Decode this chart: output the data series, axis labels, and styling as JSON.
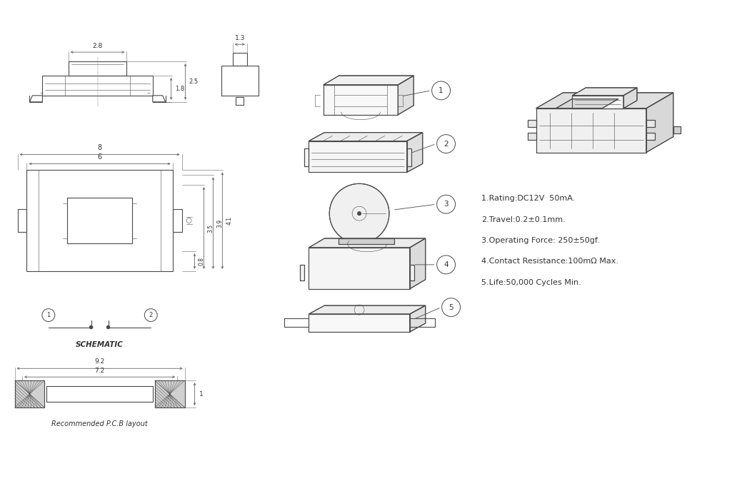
{
  "bg_color": "#ffffff",
  "line_color": "#4a4a4a",
  "dim_color": "#666666",
  "text_color": "#333333",
  "specs": [
    "1.Rating:DC12V  50mA.",
    "2.Travel:0.2±0.1mm.",
    "3.Operating Force: 250±50gf.",
    "4.Contact Resistance:100mΩ Max.",
    "5.Life:50,000 Cycles Min."
  ],
  "part_labels": [
    "1",
    "2",
    "3",
    "4",
    "5"
  ],
  "schematic_label": "SCHEMATIC",
  "pcb_label": "Recommended P.C.B layout",
  "dim_top_width": "2.8",
  "dim_top_h1": "1.8",
  "dim_top_h2": "2.5",
  "dim_side_w": "1.3",
  "dim_front_w1": "8",
  "dim_front_w2": "6",
  "dim_front_h1": "0.8",
  "dim_front_h2": "3.5",
  "dim_front_h3": "3.9",
  "dim_front_h4": "4.1",
  "dim_pcb_w1": "9.2",
  "dim_pcb_w2": "7.2",
  "dim_pcb_h": "1"
}
